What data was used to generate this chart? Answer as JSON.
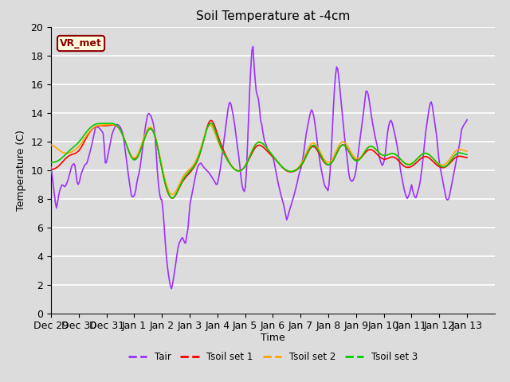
{
  "title": "Soil Temperature at -4cm",
  "xlabel": "Time",
  "ylabel": "Temperature (C)",
  "ylim": [
    0,
    20
  ],
  "xlim": [
    0,
    16
  ],
  "annotation_text": "VR_met",
  "annotation_color": "#8B0000",
  "annotation_bg": "#FFFFE0",
  "bg_color": "#DCDCDC",
  "xtick_labels": [
    "Dec 29",
    "Dec 30",
    "Dec 31",
    "Jan 1",
    "Jan 2",
    "Jan 3",
    "Jan 4",
    "Jan 5",
    "Jan 6",
    "Jan 7",
    "Jan 8",
    "Jan 9",
    "Jan 10",
    "Jan 11",
    "Jan 12",
    "Jan 13"
  ],
  "legend_labels": [
    "Tair",
    "Tsoil set 1",
    "Tsoil set 2",
    "Tsoil set 3"
  ],
  "legend_colors": [
    "#9B30FF",
    "#FF0000",
    "#FFA500",
    "#00CC00"
  ],
  "tair_color": "#9B30FF",
  "tsoil1_color": "#FF0000",
  "tsoil2_color": "#FFA500",
  "tsoil3_color": "#00CC00",
  "grid_color": "#FFFFFF",
  "line_width": 1.2
}
